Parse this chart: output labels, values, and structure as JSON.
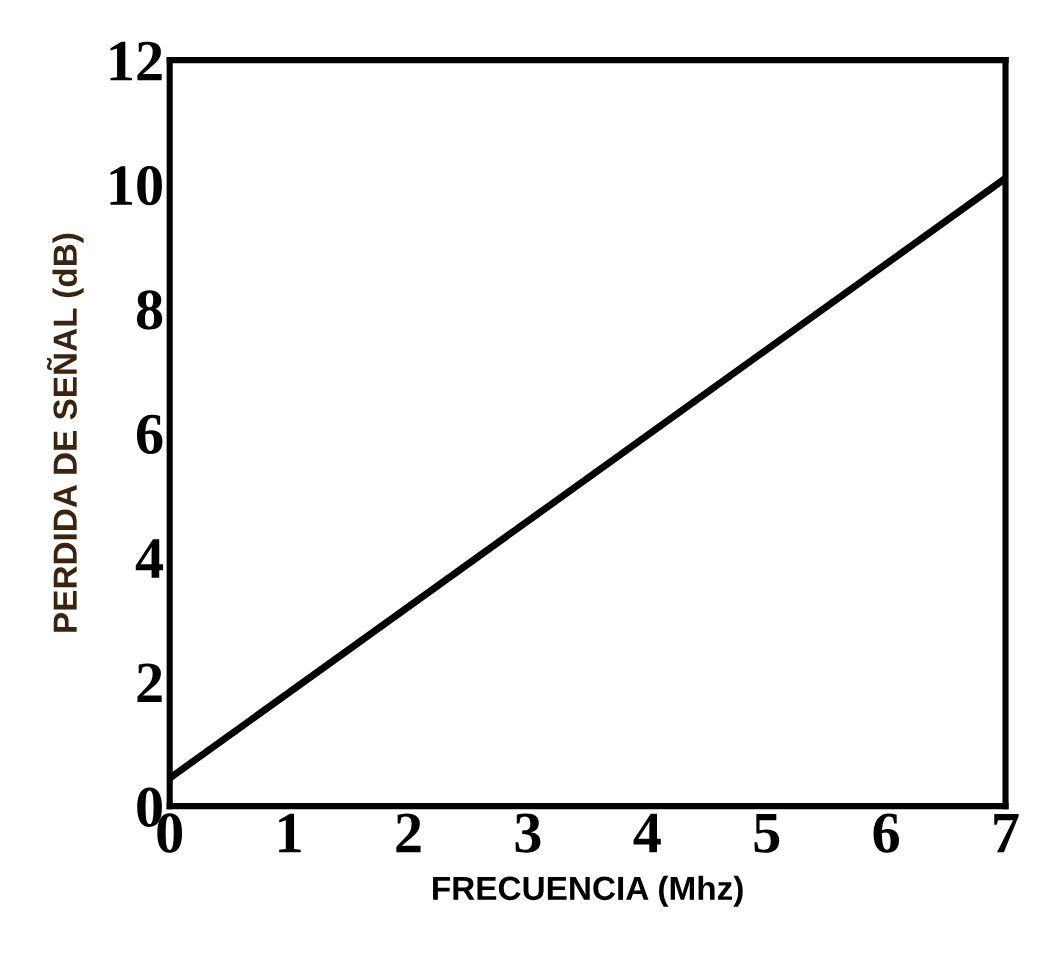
{
  "chart_data": {
    "type": "line",
    "xlabel": "FRECUENCIA (Mhz)",
    "ylabel": "PERDIDA DE SEÑAL (dB)",
    "x": [
      0,
      7
    ],
    "series": [
      {
        "color": "#000000",
        "values": [
          0.45,
          10.1
        ]
      }
    ],
    "xlim": [
      0,
      7
    ],
    "ylim": [
      0,
      12
    ],
    "xticks": [
      0,
      1,
      2,
      3,
      4,
      5,
      6,
      7
    ],
    "yticks": [
      0,
      2,
      4,
      6,
      8,
      10,
      12
    ],
    "grid": false,
    "legend": false,
    "marker": "none",
    "line_style": "solid"
  }
}
